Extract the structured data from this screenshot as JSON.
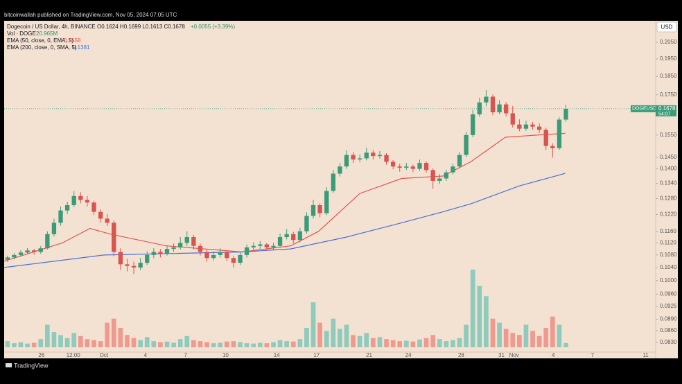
{
  "header": {
    "publisher": "bitcoinwallah published on TradingView.com, Nov 05, 2024 07:05 UTC"
  },
  "chart_data": {
    "type": "candlestick",
    "symbol": "Dogecoin / US Dollar, 4h, BINANCE",
    "ohlc": "O0.1624 H0.1699 L0.1613 C0.1678",
    "change": "+0.0055 (+3.39%)",
    "currency": "USD",
    "log_scale": true,
    "grid": false,
    "up_color": "#3a9b78",
    "down_color": "#d9534f",
    "ylim": [
      0.0806,
      0.2187
    ],
    "yticks": [
      {
        "value": 0.205,
        "label": "0.2050"
      },
      {
        "value": 0.195,
        "label": "0.1950"
      },
      {
        "value": 0.185,
        "label": "0.1850"
      },
      {
        "value": 0.175,
        "label": "0.1750"
      },
      {
        "value": 0.155,
        "label": "0.1550"
      },
      {
        "value": 0.145,
        "label": "0.1450"
      },
      {
        "value": 0.14,
        "label": "0.1400"
      },
      {
        "value": 0.134,
        "label": "0.1340"
      },
      {
        "value": 0.128,
        "label": "0.1280"
      },
      {
        "value": 0.122,
        "label": "0.1220"
      },
      {
        "value": 0.116,
        "label": "0.1160"
      },
      {
        "value": 0.112,
        "label": "0.1120"
      },
      {
        "value": 0.108,
        "label": "0.1080"
      },
      {
        "value": 0.104,
        "label": "0.1040"
      },
      {
        "value": 0.1,
        "label": "0.1000"
      },
      {
        "value": 0.096,
        "label": "0.0960"
      },
      {
        "value": 0.0925,
        "label": "0.0925"
      },
      {
        "value": 0.089,
        "label": "0.0890"
      },
      {
        "value": 0.086,
        "label": "0.0860"
      },
      {
        "value": 0.083,
        "label": "0.0830"
      }
    ],
    "xlim": [
      0,
      98
    ],
    "xticks": [
      {
        "value": 5.6,
        "label": "26"
      },
      {
        "value": 10.4,
        "label": "12:00"
      },
      {
        "value": 15,
        "label": "Oct"
      },
      {
        "value": 21.25,
        "label": "4"
      },
      {
        "value": 27.3,
        "label": "7"
      },
      {
        "value": 33.3,
        "label": "10"
      },
      {
        "value": 41,
        "label": "14"
      },
      {
        "value": 47,
        "label": "17"
      },
      {
        "value": 54.9,
        "label": "21"
      },
      {
        "value": 60.8,
        "label": "24"
      },
      {
        "value": 68.75,
        "label": "28"
      },
      {
        "value": 74.8,
        "label": "31"
      },
      {
        "value": 76.7,
        "label": "Nov"
      },
      {
        "value": 82.6,
        "label": "4"
      },
      {
        "value": 88.5,
        "label": "7"
      },
      {
        "value": 96.5,
        "label": "11"
      }
    ],
    "open": [
      0.1065,
      0.1072,
      0.108,
      0.1088,
      0.1095,
      0.109,
      0.1102,
      0.115,
      0.119,
      0.1235,
      0.1255,
      0.129,
      0.1275,
      0.1265,
      0.123,
      0.1205,
      0.119,
      0.109,
      0.105,
      0.1045,
      0.104,
      0.1055,
      0.108,
      0.109,
      0.1085,
      0.11,
      0.1105,
      0.112,
      0.114,
      0.111,
      0.109,
      0.107,
      0.108,
      0.109,
      0.107,
      0.1055,
      0.108,
      0.1105,
      0.111,
      0.1115,
      0.1105,
      0.111,
      0.114,
      0.115,
      0.113,
      0.116,
      0.1215,
      0.1255,
      0.1225,
      0.131,
      0.138,
      0.141,
      0.146,
      0.144,
      0.1445,
      0.147,
      0.1455,
      0.146,
      0.143,
      0.141,
      0.1405,
      0.141,
      0.14,
      0.1425,
      0.1395,
      0.135,
      0.136,
      0.1385,
      0.141,
      0.146,
      0.155,
      0.165,
      0.171,
      0.174,
      0.166,
      0.17,
      0.1655,
      0.16,
      0.158,
      0.16,
      0.159,
      0.1575,
      0.15,
      0.149,
      0.1624
    ],
    "high": [
      0.1078,
      0.1086,
      0.1096,
      0.1103,
      0.11,
      0.111,
      0.116,
      0.1205,
      0.125,
      0.1268,
      0.131,
      0.1305,
      0.129,
      0.1272,
      0.124,
      0.1222,
      0.1198,
      0.1102,
      0.1068,
      0.1058,
      0.107,
      0.1092,
      0.1102,
      0.11,
      0.1112,
      0.1118,
      0.114,
      0.116,
      0.1148,
      0.1118,
      0.1098,
      0.1092,
      0.1102,
      0.1096,
      0.1078,
      0.109,
      0.1115,
      0.1122,
      0.1126,
      0.112,
      0.112,
      0.1152,
      0.1168,
      0.1158,
      0.1172,
      0.1228,
      0.1275,
      0.1262,
      0.1325,
      0.1395,
      0.1425,
      0.148,
      0.1472,
      0.1462,
      0.1492,
      0.1482,
      0.1478,
      0.1468,
      0.1438,
      0.1422,
      0.1425,
      0.1418,
      0.144,
      0.1432,
      0.1402,
      0.1378,
      0.1396,
      0.1422,
      0.1472,
      0.1565,
      0.1672,
      0.1735,
      0.1775,
      0.1752,
      0.1722,
      0.1712,
      0.1692,
      0.1625,
      0.1618,
      0.1612,
      0.1605,
      0.1585,
      0.1512,
      0.1635,
      0.1699
    ],
    "low": [
      0.1058,
      0.1066,
      0.1074,
      0.1082,
      0.1081,
      0.1084,
      0.1098,
      0.1142,
      0.118,
      0.1222,
      0.1248,
      0.1262,
      0.125,
      0.1218,
      0.119,
      0.1178,
      0.1075,
      0.1032,
      0.1028,
      0.102,
      0.1032,
      0.1048,
      0.107,
      0.1072,
      0.1078,
      0.109,
      0.1098,
      0.111,
      0.1098,
      0.1078,
      0.1058,
      0.1062,
      0.1072,
      0.106,
      0.104,
      0.1048,
      0.1072,
      0.1096,
      0.11,
      0.1094,
      0.1098,
      0.1104,
      0.1132,
      0.1118,
      0.1122,
      0.1152,
      0.1205,
      0.121,
      0.1218,
      0.1302,
      0.1368,
      0.14,
      0.1425,
      0.1428,
      0.1436,
      0.144,
      0.1444,
      0.1418,
      0.1398,
      0.1388,
      0.1396,
      0.1386,
      0.1392,
      0.1385,
      0.1318,
      0.1338,
      0.135,
      0.1376,
      0.1402,
      0.145,
      0.154,
      0.1638,
      0.169,
      0.1645,
      0.165,
      0.164,
      0.1585,
      0.1568,
      0.157,
      0.1575,
      0.156,
      0.1482,
      0.1448,
      0.1482,
      0.1613
    ],
    "close": [
      0.1072,
      0.108,
      0.1088,
      0.1095,
      0.109,
      0.1102,
      0.115,
      0.119,
      0.1235,
      0.1255,
      0.129,
      0.1275,
      0.1265,
      0.123,
      0.1205,
      0.119,
      0.109,
      0.105,
      0.1045,
      0.104,
      0.1055,
      0.108,
      0.109,
      0.1085,
      0.11,
      0.1105,
      0.112,
      0.114,
      0.111,
      0.109,
      0.107,
      0.108,
      0.109,
      0.107,
      0.1055,
      0.108,
      0.1105,
      0.111,
      0.1115,
      0.1105,
      0.111,
      0.114,
      0.115,
      0.113,
      0.116,
      0.1215,
      0.1255,
      0.1225,
      0.131,
      0.138,
      0.141,
      0.146,
      0.144,
      0.1445,
      0.147,
      0.1455,
      0.146,
      0.143,
      0.141,
      0.1405,
      0.141,
      0.14,
      0.1425,
      0.1395,
      0.135,
      0.136,
      0.1385,
      0.141,
      0.146,
      0.155,
      0.165,
      0.171,
      0.174,
      0.166,
      0.17,
      0.1655,
      0.16,
      0.158,
      0.16,
      0.159,
      0.1575,
      0.15,
      0.149,
      0.1624,
      0.1678
    ],
    "volume": {
      "name": "Vol · DOGE",
      "value_label": "20.965M",
      "up_color": "#8fcbbd",
      "down_color": "#f0998e",
      "ylim": [
        0,
        400
      ],
      "values": [
        30,
        20,
        25,
        18,
        22,
        40,
        110,
        75,
        60,
        45,
        70,
        55,
        40,
        35,
        30,
        120,
        140,
        95,
        60,
        45,
        35,
        50,
        30,
        25,
        28,
        22,
        40,
        55,
        35,
        30,
        25,
        20,
        22,
        28,
        30,
        25,
        20,
        18,
        22,
        20,
        25,
        35,
        30,
        28,
        40,
        95,
        220,
        120,
        80,
        140,
        90,
        110,
        60,
        55,
        70,
        45,
        50,
        40,
        35,
        30,
        32,
        28,
        38,
        45,
        60,
        40,
        30,
        35,
        45,
        110,
        380,
        300,
        250,
        140,
        120,
        90,
        70,
        60,
        110,
        80,
        55,
        95,
        150,
        110,
        20.965
      ]
    },
    "series": [
      {
        "name": "EMA (50, close, 0, EMA, 5)",
        "color": "#e8534f",
        "x": [
          0,
          8.75,
          12.9,
          16,
          24.4,
          35.8,
          43.1,
          47.3,
          53.5,
          59.8,
          66,
          70.2,
          75.4,
          80.1,
          84.4
        ],
        "values": [
          0.106,
          0.112,
          0.117,
          0.115,
          0.111,
          0.109,
          0.111,
          0.116,
          0.13,
          0.136,
          0.137,
          0.143,
          0.154,
          0.155,
          0.1558
        ]
      },
      {
        "name": "EMA (200, close, 0, SMA, 5)",
        "color": "#4a6fd8",
        "x": [
          0,
          15,
          35.8,
          43.1,
          51.5,
          59.8,
          66,
          70.2,
          77.5,
          84.4
        ],
        "values": [
          0.104,
          0.108,
          0.109,
          0.11,
          0.114,
          0.119,
          0.123,
          0.126,
          0.133,
          0.1381
        ]
      }
    ],
    "last_price": {
      "ticker": "DOGEUSD",
      "countdown": "54:07"
    }
  },
  "footer": {
    "brand": "TradingView"
  }
}
